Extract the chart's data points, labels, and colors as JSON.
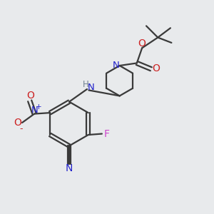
{
  "bg_color": "#e8eaec",
  "bond_color": "#3a3a3a",
  "N_color": "#2222cc",
  "O_color": "#cc2222",
  "F_color": "#cc44cc",
  "H_color": "#708090",
  "lw": 1.6,
  "fig_size": [
    3.0,
    3.0
  ],
  "dpi": 100,
  "xlim": [
    0,
    10
  ],
  "ylim": [
    0,
    10
  ]
}
